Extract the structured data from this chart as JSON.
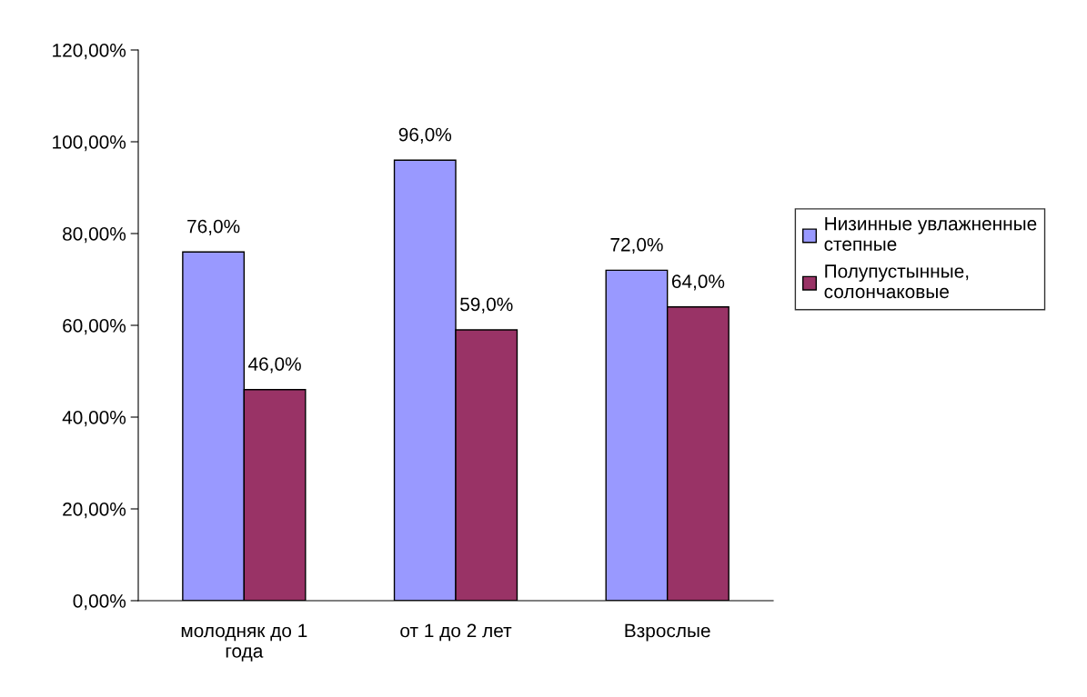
{
  "chart_data": {
    "type": "bar",
    "categories": [
      "молодняк до 1\nгода",
      "от 1 до 2 лет",
      "Взрослые"
    ],
    "series": [
      {
        "name": "Низинные увлажненные\nстепные",
        "color": "#9999ff",
        "values": [
          76,
          96,
          72
        ],
        "value_labels": [
          "76,0%",
          "96,0%",
          "72,0%"
        ]
      },
      {
        "name": "Полупустынные,\nсолончаковые",
        "color": "#993366",
        "values": [
          46,
          59,
          64
        ],
        "value_labels": [
          "46,0%",
          "59,0%",
          "64,0%"
        ]
      }
    ],
    "ylim": [
      0,
      120
    ],
    "yticks": [
      {
        "value": 0,
        "label": "0,00%"
      },
      {
        "value": 20,
        "label": "20,00%"
      },
      {
        "value": 40,
        "label": "40,00%"
      },
      {
        "value": 60,
        "label": "60,00%"
      },
      {
        "value": 80,
        "label": "80,00%"
      },
      {
        "value": 100,
        "label": "100,00%"
      },
      {
        "value": 120,
        "label": "120,00%"
      }
    ],
    "grid": false,
    "legend": "right"
  }
}
